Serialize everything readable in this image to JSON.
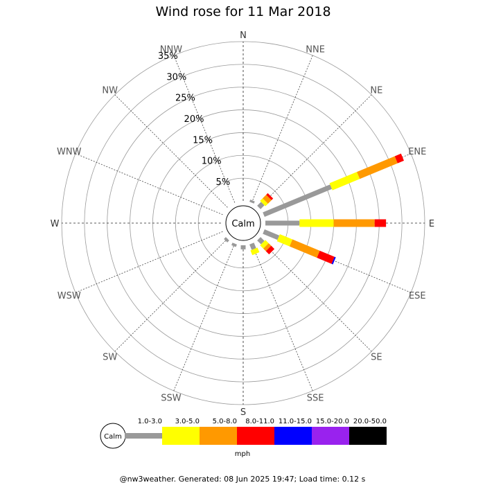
{
  "chart_data": {
    "type": "wind-rose",
    "title": "Wind rose for 11 Mar 2018",
    "directions": [
      "N",
      "NNE",
      "NE",
      "ENE",
      "E",
      "ESE",
      "SE",
      "SSE",
      "S",
      "SSW",
      "SW",
      "WSW",
      "W",
      "WNW",
      "NW",
      "NNW"
    ],
    "radial_ticks": [
      "5%",
      "10%",
      "15%",
      "20%",
      "25%",
      "30%",
      "35%"
    ],
    "radial_max_percent": 35,
    "calm_label": "Calm",
    "speed_bins": [
      "1.0-3.0",
      "3.0-5.0",
      "5.0-8.0",
      "8.0-11.0",
      "11.0-15.0",
      "15.0-20.0",
      "20.0-50.0"
    ],
    "bin_colors": [
      "#999999",
      "#ffff00",
      "#ff9900",
      "#ff0000",
      "#0000ff",
      "#9922ee",
      "#000000"
    ],
    "unit": "mph",
    "series": [
      {
        "direction": "N",
        "cumulative_percent": [
          0,
          0,
          0,
          0,
          0,
          0,
          0
        ]
      },
      {
        "direction": "NNE",
        "cumulative_percent": [
          0.5,
          0.5,
          0.5,
          0.5,
          0.5,
          0.5,
          0.5
        ]
      },
      {
        "direction": "NE",
        "cumulative_percent": [
          1.2,
          2.0,
          3.1,
          3.6,
          3.6,
          3.6,
          3.6
        ]
      },
      {
        "direction": "ENE",
        "cumulative_percent": [
          16.0,
          22.5,
          31.5,
          33.0,
          33.0,
          33.0,
          33.0
        ]
      },
      {
        "direction": "E",
        "cumulative_percent": [
          7.5,
          15.0,
          24.0,
          26.5,
          26.5,
          26.5,
          26.5
        ]
      },
      {
        "direction": "ESE",
        "cumulative_percent": [
          3.5,
          6.5,
          13.0,
          16.5,
          16.8,
          16.8,
          16.8
        ]
      },
      {
        "direction": "SE",
        "cumulative_percent": [
          1.2,
          2.2,
          3.0,
          4.0,
          4.0,
          4.0,
          4.0
        ]
      },
      {
        "direction": "SSE",
        "cumulative_percent": [
          1.3,
          2.4,
          2.4,
          2.4,
          2.4,
          2.4,
          2.4
        ]
      },
      {
        "direction": "S",
        "cumulative_percent": [
          0.9,
          0.9,
          0.9,
          0.9,
          0.9,
          0.9,
          0.9
        ]
      },
      {
        "direction": "SSW",
        "cumulative_percent": [
          0.6,
          0.6,
          0.6,
          0.6,
          0.6,
          0.6,
          0.6
        ]
      },
      {
        "direction": "SW",
        "cumulative_percent": [
          0.6,
          0.6,
          0.6,
          0.6,
          0.6,
          0.6,
          0.6
        ]
      },
      {
        "direction": "WSW",
        "cumulative_percent": [
          0,
          0,
          0,
          0,
          0,
          0,
          0
        ]
      },
      {
        "direction": "W",
        "cumulative_percent": [
          0,
          0,
          0,
          0,
          0,
          0,
          0
        ]
      },
      {
        "direction": "WNW",
        "cumulative_percent": [
          0,
          0,
          0,
          0,
          0,
          0,
          0
        ]
      },
      {
        "direction": "NW",
        "cumulative_percent": [
          0,
          0,
          0,
          0,
          0,
          0,
          0
        ]
      },
      {
        "direction": "NNW",
        "cumulative_percent": [
          0,
          0,
          0,
          0,
          0,
          0,
          0
        ]
      }
    ]
  },
  "footer": "@nw3weather. Generated: 08 Jun 2025 19:47; Load time: 0.12 s"
}
